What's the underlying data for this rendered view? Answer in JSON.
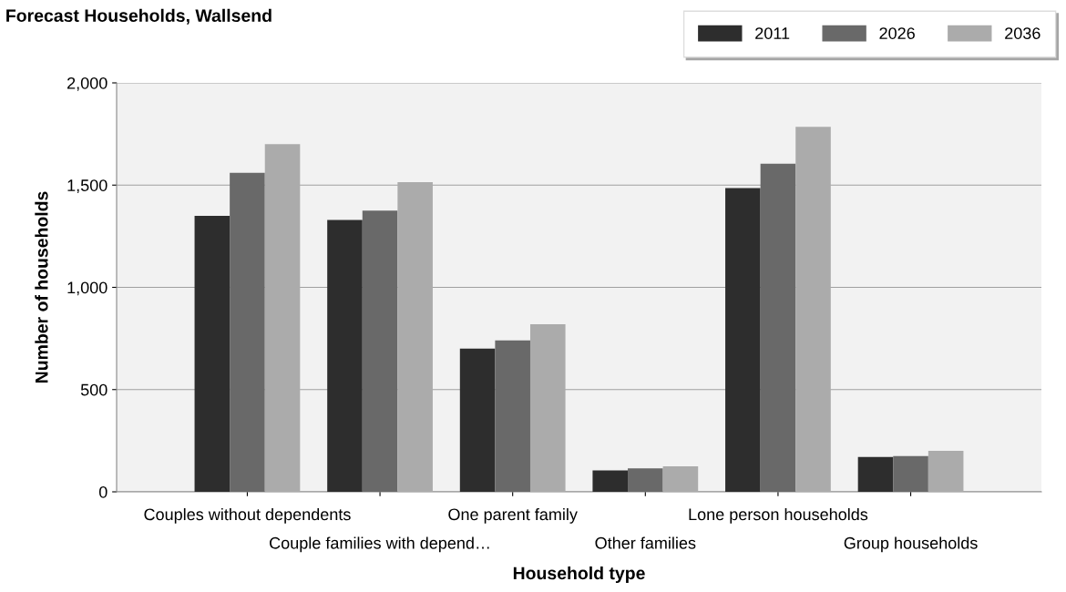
{
  "chart_data": {
    "type": "bar",
    "title": "Forecast Households, Wallsend",
    "xlabel": "Household type",
    "ylabel": "Number of households",
    "categories": [
      "Couples without dependents",
      "Couple families with depend…",
      "One parent family",
      "Other families",
      "Lone person households",
      "Group households"
    ],
    "series": [
      {
        "name": "2011",
        "color": "#2d2d2d",
        "values": [
          1350,
          1330,
          700,
          105,
          1485,
          170
        ]
      },
      {
        "name": "2026",
        "color": "#696969",
        "values": [
          1560,
          1375,
          740,
          115,
          1605,
          175
        ]
      },
      {
        "name": "2036",
        "color": "#ababab",
        "values": [
          1700,
          1515,
          820,
          125,
          1785,
          200
        ]
      }
    ],
    "ylim": [
      0,
      2000
    ],
    "yticks": [
      {
        "value": 0,
        "label": "0"
      },
      {
        "value": 500,
        "label": "500"
      },
      {
        "value": 1000,
        "label": "1,000"
      },
      {
        "value": 1500,
        "label": "1,500"
      },
      {
        "value": 2000,
        "label": "2,000"
      }
    ],
    "grid": "y",
    "legend": "top right"
  }
}
